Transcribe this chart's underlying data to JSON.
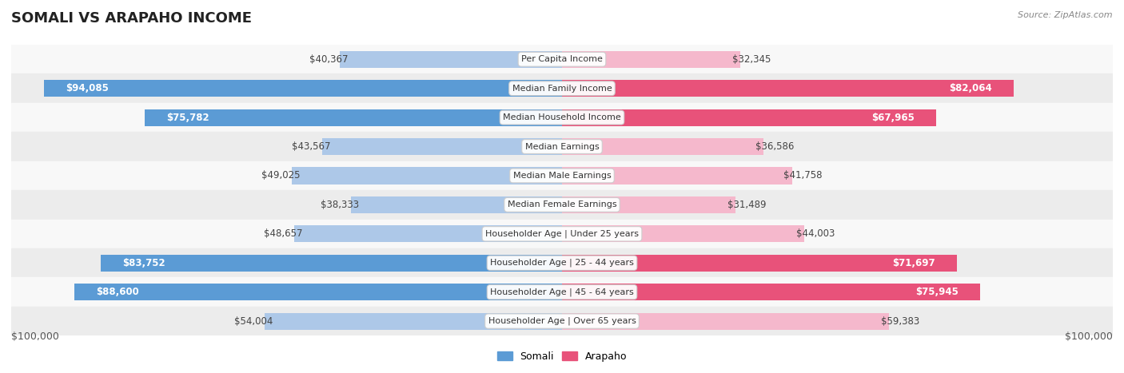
{
  "title": "SOMALI VS ARAPAHO INCOME",
  "source": "Source: ZipAtlas.com",
  "max_value": 100000,
  "categories": [
    "Per Capita Income",
    "Median Family Income",
    "Median Household Income",
    "Median Earnings",
    "Median Male Earnings",
    "Median Female Earnings",
    "Householder Age | Under 25 years",
    "Householder Age | 25 - 44 years",
    "Householder Age | 45 - 64 years",
    "Householder Age | Over 65 years"
  ],
  "somali_values": [
    40367,
    94085,
    75782,
    43567,
    49025,
    38333,
    48657,
    83752,
    88600,
    54004
  ],
  "arapaho_values": [
    32345,
    82064,
    67965,
    36586,
    41758,
    31489,
    44003,
    71697,
    75945,
    59383
  ],
  "somali_labels": [
    "$40,367",
    "$94,085",
    "$75,782",
    "$43,567",
    "$49,025",
    "$38,333",
    "$48,657",
    "$83,752",
    "$88,600",
    "$54,004"
  ],
  "arapaho_labels": [
    "$32,345",
    "$82,064",
    "$67,965",
    "$36,586",
    "$41,758",
    "$31,489",
    "$44,003",
    "$71,697",
    "$75,945",
    "$59,383"
  ],
  "somali_color_light": "#adc8e8",
  "somali_color_dark": "#5b9bd5",
  "arapaho_color_light": "#f5b8cc",
  "arapaho_color_dark": "#e8527a",
  "somali_large_threshold": 65000,
  "arapaho_large_threshold": 60000,
  "label_color_dark": "#444444",
  "label_color_white": "#ffffff",
  "bg_row_light": "#ececec",
  "bg_row_white": "#f8f8f8",
  "legend_somali": "Somali",
  "legend_arapaho": "Arapaho",
  "xlabel_left": "$100,000",
  "xlabel_right": "$100,000",
  "title_fontsize": 13,
  "label_fontsize": 8.5,
  "cat_fontsize": 8.0
}
